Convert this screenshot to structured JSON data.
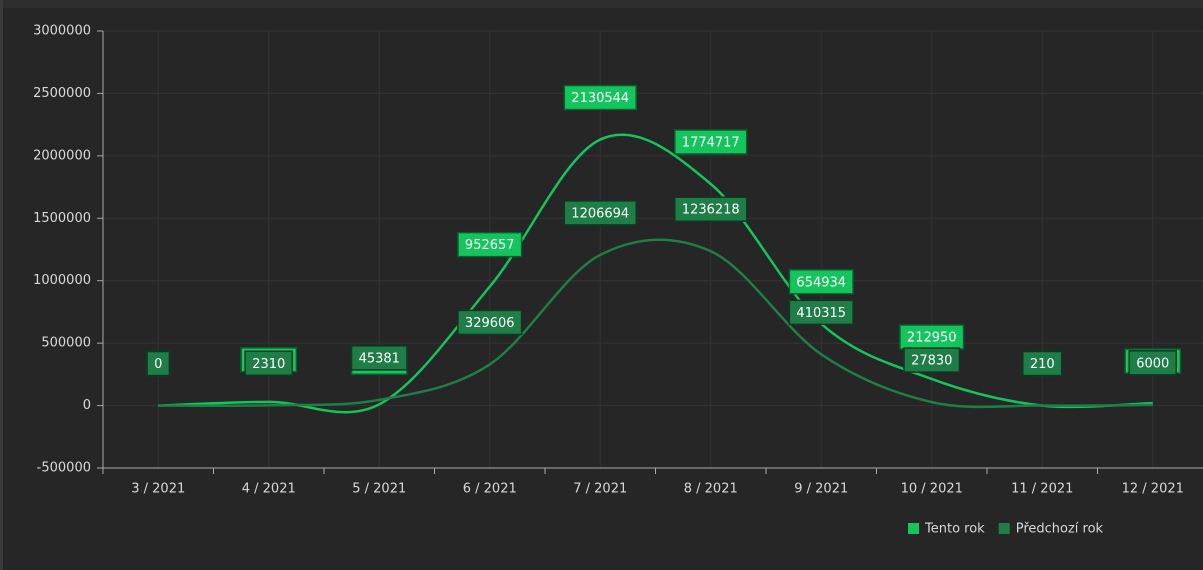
{
  "chart_data": {
    "type": "line",
    "categories": [
      "3 / 2021",
      "4 / 2021",
      "5 / 2021",
      "6 / 2021",
      "7 / 2021",
      "8 / 2021",
      "9 / 2021",
      "10 / 2021",
      "11 / 2021",
      "12 / 2021"
    ],
    "series": [
      {
        "name": "Tento rok",
        "color": "#14c45c",
        "values": [
          0,
          30000,
          10000,
          952657,
          2130544,
          1774717,
          654934,
          212950,
          0,
          20000
        ]
      },
      {
        "name": "Předchozí rok",
        "color": "#1f7d47",
        "values": [
          0,
          2310,
          45381,
          329606,
          1206694,
          1236218,
          410315,
          27830,
          210,
          6000
        ]
      }
    ],
    "ylim": [
      -500000,
      3000000
    ],
    "yticks": [
      -500000,
      0,
      500000,
      1000000,
      1500000,
      2000000,
      2500000,
      3000000
    ],
    "grid": true,
    "legend": "bottom-right"
  }
}
